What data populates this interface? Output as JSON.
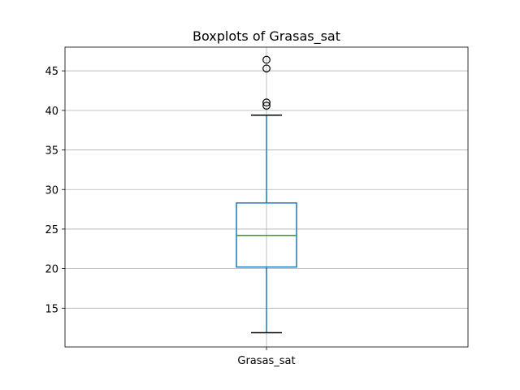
{
  "chart_data": {
    "type": "box",
    "title": "Boxplots of Grasas_sat",
    "xlabel": "",
    "ylabel": "",
    "categories": [
      "Grasas_sat"
    ],
    "grid": true,
    "ylim": [
      10.1,
      48.0
    ],
    "yticks": [
      15,
      20,
      25,
      30,
      35,
      40,
      45
    ],
    "boxes": [
      {
        "name": "Grasas_sat",
        "whisker_low": 11.9,
        "q1": 20.2,
        "median": 24.2,
        "q3": 28.3,
        "whisker_high": 39.4,
        "outliers": [
          40.6,
          41.0,
          45.3,
          46.4
        ]
      }
    ],
    "colors": {
      "box": "#1f77b4",
      "median": "#2ca02c",
      "whisker_cap": "#000000",
      "outlier": "#000000",
      "grid": "#b0b0b0"
    }
  }
}
